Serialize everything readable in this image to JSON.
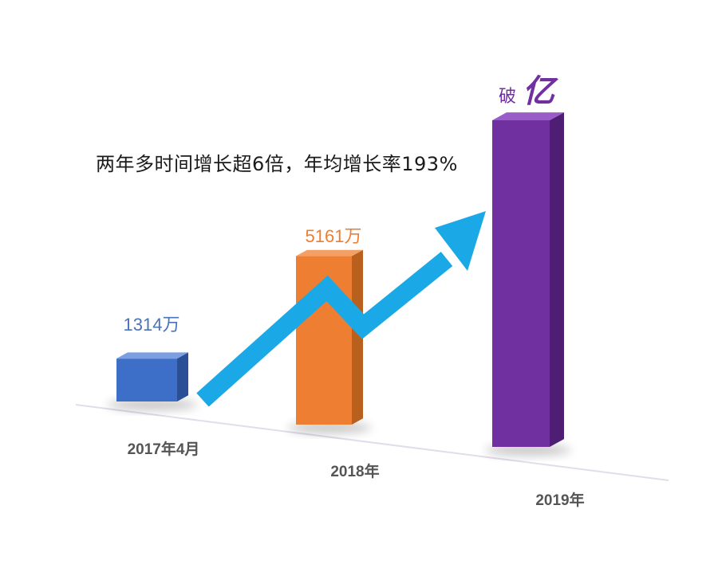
{
  "headline": "两年多时间增长超6倍，年均增长率193%",
  "chart_data": {
    "type": "bar",
    "title": "",
    "xlabel": "",
    "ylabel": "",
    "categories": [
      "2017年4月",
      "2018年",
      "2019年"
    ],
    "values": [
      1314,
      5161,
      10000
    ],
    "unit": "万",
    "data_labels": [
      "1314万",
      "5161万",
      "破亿"
    ],
    "value_labels": [
      {
        "parts": [
          "1314万"
        ]
      },
      {
        "parts": [
          "5161万"
        ]
      },
      {
        "parts": [
          "破",
          "亿"
        ]
      }
    ],
    "colors": {
      "bar_fronts": [
        "#3d6fc9",
        "#ee7e32",
        "#7030a0"
      ],
      "bar_sides": [
        "#2a4f97",
        "#b9601f",
        "#4e1e74"
      ],
      "bar_tops": [
        "#7d9ee0",
        "#f2a066",
        "#9a5cc8"
      ],
      "data_labels": [
        "#4a73b8",
        "#ee7e32",
        "#7030a0"
      ],
      "trend_arrow": "#1aa9e6",
      "baseline": "#e3dcec",
      "category_labels": "#555555"
    },
    "grid": false,
    "legend": "none",
    "trend_arrow": true
  }
}
